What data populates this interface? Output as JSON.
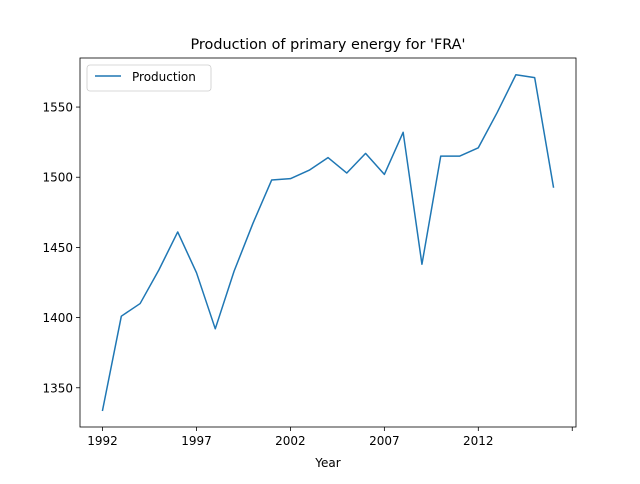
{
  "chart_data": {
    "type": "line",
    "title": "Production of primary energy for 'FRA'",
    "xlabel": "Year",
    "ylabel": "",
    "x": [
      1992,
      1993,
      1994,
      1995,
      1996,
      1997,
      1998,
      1999,
      2000,
      2001,
      2002,
      2003,
      2004,
      2005,
      2006,
      2007,
      2008,
      2009,
      2010,
      2011,
      2012,
      2013,
      2014,
      2015,
      2016
    ],
    "series": [
      {
        "name": "Production",
        "color": "#1f77b4",
        "values": [
          1334,
          1401,
          1410,
          1434,
          1461,
          1432,
          1392,
          1433,
          1467,
          1498,
          1499,
          1505,
          1514,
          1503,
          1517,
          1502,
          1532,
          1438,
          1515,
          1515,
          1521,
          1546,
          1573,
          1571,
          1493
        ]
      }
    ],
    "xlim": [
      1990.8,
      2017.2
    ],
    "ylim": [
      1322.05,
      1584.95
    ],
    "x_ticks": [
      "1992",
      "1997",
      "2002",
      "2007",
      "2012",
      ""
    ],
    "x_tick_values": [
      1992,
      1997,
      2002,
      2007,
      2012,
      2017
    ],
    "y_ticks": [
      "1350",
      "1400",
      "1450",
      "1500",
      "1550"
    ],
    "y_tick_values": [
      1350,
      1400,
      1450,
      1500,
      1550
    ],
    "grid": false,
    "legend_position": "top-left"
  }
}
